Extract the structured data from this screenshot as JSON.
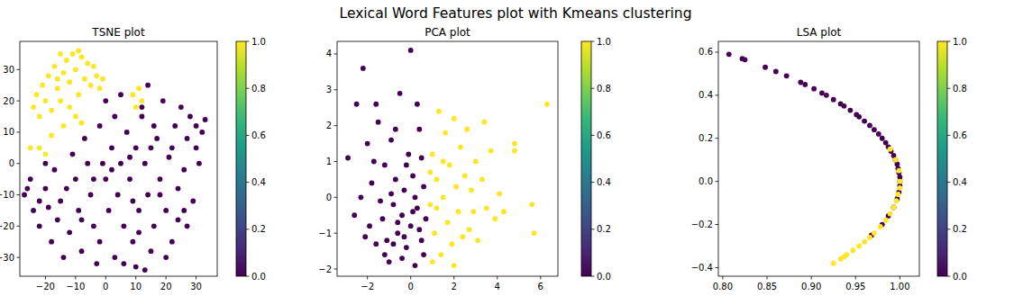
{
  "title": "Lexical Word Features plot with Kmeans clustering",
  "chart_data": [
    {
      "type": "scatter",
      "title": "TSNE plot",
      "xlim": [
        -28.5,
        37
      ],
      "ylim": [
        -36,
        39
      ],
      "xticks": [
        {
          "value": -20,
          "label": "−20"
        },
        {
          "value": -10,
          "label": "−10"
        },
        0,
        10,
        20,
        30
      ],
      "yticks": [
        {
          "value": -30,
          "label": "−30"
        },
        {
          "value": -20,
          "label": "−20"
        },
        {
          "value": -10,
          "label": "−10"
        },
        0,
        10,
        20,
        30
      ],
      "colorbar": {
        "range": [
          0,
          1
        ],
        "ticks": [
          {
            "value": 0,
            "label": "0.0"
          },
          {
            "value": 0.2,
            "label": "0.2"
          },
          {
            "value": 0.4,
            "label": "0.4"
          },
          {
            "value": 0.6,
            "label": "0.6"
          },
          {
            "value": 0.8,
            "label": "0.8"
          },
          {
            "value": 1,
            "label": "1.0"
          }
        ]
      },
      "series": [
        {
          "color": "#440154",
          "x": [
            -27,
            -25,
            -24,
            -22,
            -20,
            -18,
            -17,
            -15,
            -14,
            -12,
            -10,
            -9,
            -8,
            -6,
            -5,
            -4,
            -2,
            0,
            1,
            2,
            3,
            4,
            5,
            6,
            7,
            8,
            9,
            10,
            10,
            11,
            12,
            13,
            14,
            15,
            16,
            17,
            18,
            19,
            20,
            21,
            22,
            23,
            24,
            25,
            26,
            27,
            28,
            29,
            30,
            31,
            32,
            33,
            24,
            20,
            14,
            12,
            -20,
            -22,
            -26,
            -16,
            -3,
            6,
            -11,
            -7,
            -2,
            3,
            0,
            5,
            -1,
            8,
            16,
            18,
            26,
            -13,
            -19,
            2,
            9,
            15,
            22,
            11,
            -8,
            -4,
            30,
            27,
            13
          ],
          "values": [
            -10,
            -5,
            -15,
            -20,
            -8,
            -25,
            -2,
            -12,
            -30,
            -22,
            -5,
            -15,
            -28,
            0,
            -10,
            -20,
            -25,
            -5,
            -15,
            5,
            -30,
            -10,
            0,
            -20,
            10,
            -5,
            -25,
            -33,
            5,
            -15,
            15,
            0,
            -10,
            -28,
            -20,
            8,
            -5,
            20,
            -15,
            2,
            -25,
            12,
            -8,
            18,
            -2,
            8,
            15,
            -12,
            12,
            0,
            10,
            14,
            -18,
            -30,
            25,
            18,
            0,
            -12,
            -8,
            -18,
            -32,
            -32,
            3,
            8,
            12,
            15,
            20,
            22,
            0,
            2,
            12,
            -10,
            -15,
            -8,
            -14,
            -2,
            -12,
            5,
            5,
            -22,
            -18,
            -5,
            5,
            -20,
            -34
          ]
        },
        {
          "color": "#fde725",
          "x": [
            -24,
            -23,
            -22,
            -21,
            -20,
            -19,
            -18,
            -17,
            -16,
            -15,
            -14,
            -13,
            -12,
            -11,
            -10,
            -9,
            -8,
            -7,
            -6,
            -5,
            -4,
            -3,
            -2,
            -12,
            -14,
            -10,
            -18,
            -22,
            -25,
            -20,
            -8,
            -15,
            9,
            11,
            12,
            10,
            -1,
            -16,
            -9
          ],
          "values": [
            18,
            22,
            15,
            25,
            20,
            28,
            17,
            31,
            24,
            35,
            29,
            33,
            26,
            35,
            30,
            22,
            34,
            27,
            32,
            25,
            31,
            28,
            24,
            18,
            12,
            15,
            9,
            5,
            5,
            3,
            13,
            20,
            22,
            24,
            20,
            18,
            27,
            27,
            36
          ]
        }
      ]
    },
    {
      "type": "scatter",
      "title": "PCA plot",
      "xlim": [
        -3.4,
        6.8
      ],
      "ylim": [
        -2.2,
        4.35
      ],
      "xticks": [
        {
          "value": -2,
          "label": "−2"
        },
        0,
        2,
        4,
        6
      ],
      "yticks": [
        {
          "value": -2,
          "label": "−2"
        },
        {
          "value": -1,
          "label": "−1"
        },
        0,
        1,
        2,
        3,
        4
      ],
      "colorbar": {
        "range": [
          0,
          1
        ],
        "ticks": [
          {
            "value": 0,
            "label": "0.0"
          },
          {
            "value": 0.2,
            "label": "0.2"
          },
          {
            "value": 0.4,
            "label": "0.4"
          },
          {
            "value": 0.6,
            "label": "0.6"
          },
          {
            "value": 0.8,
            "label": "0.8"
          },
          {
            "value": 1,
            "label": "1.0"
          }
        ]
      },
      "series": [
        {
          "color": "#440154",
          "x": [
            -2.9,
            -2.5,
            -2.2,
            -2.0,
            -1.8,
            -1.6,
            -1.5,
            -1.3,
            -1.2,
            -1.0,
            -0.9,
            -0.8,
            -0.7,
            -0.6,
            -0.5,
            -0.4,
            -0.3,
            -0.2,
            -0.1,
            0.0,
            0.0,
            0.1,
            0.2,
            0.3,
            0.4,
            0.5,
            0.6,
            0.7,
            -1.4,
            -1.1,
            -0.9,
            -0.6,
            -0.3,
            0.2,
            0.4,
            -2.3,
            -1.9,
            -2.6,
            -1.7,
            -0.2,
            0.5,
            -0.4,
            -1.2,
            0.1,
            -0.8,
            0.6,
            -1.6,
            0.3,
            -0.7,
            -2.1
          ],
          "values": [
            1.1,
            2.6,
            3.6,
            1.5,
            0.4,
            -1.3,
            2.1,
            -0.6,
            0.9,
            -1.8,
            1.6,
            -0.2,
            0.5,
            -1.0,
            2.9,
            -0.5,
            0.2,
            -1.4,
            1.2,
            4.1,
            -0.8,
            0.6,
            -1.9,
            -0.3,
            1.9,
            -1.2,
            0.3,
            -0.6,
            -0.1,
            -1.2,
            0.1,
            -0.7,
            -1.1,
            0.0,
            -0.9,
            0.0,
            -0.8,
            -0.5,
            1.0,
            0.9,
            1.1,
            -1.7,
            -1.6,
            -0.4,
            -1.3,
            -1.6,
            2.6,
            2.6,
            1.9,
            -1.1
          ]
        },
        {
          "color": "#fde725",
          "x": [
            0.9,
            1.0,
            1.1,
            1.2,
            1.3,
            1.4,
            1.5,
            1.6,
            1.7,
            1.8,
            1.9,
            2.0,
            2.1,
            2.2,
            2.3,
            2.4,
            2.5,
            2.6,
            2.7,
            2.8,
            3.0,
            3.1,
            3.3,
            3.5,
            3.7,
            3.9,
            4.1,
            4.3,
            4.8,
            4.8,
            5.6,
            5.7,
            6.3,
            1.0,
            1.2,
            0.9,
            1.5,
            2.0,
            3.4,
            2.9
          ],
          "values": [
            -0.2,
            1.2,
            -1.0,
            0.5,
            2.4,
            -1.6,
            0.0,
            1.8,
            -0.7,
            0.9,
            -1.3,
            2.2,
            0.3,
            -0.4,
            1.4,
            -1.1,
            0.6,
            1.9,
            -0.9,
            0.2,
            1.0,
            -1.2,
            0.5,
            -0.3,
            1.3,
            -0.6,
            0.1,
            -0.4,
            1.5,
            1.3,
            -0.2,
            -1.0,
            2.6,
            -1.8,
            -0.3,
            0.7,
            1.0,
            -1.9,
            2.1,
            -0.4
          ]
        }
      ]
    },
    {
      "type": "scatter",
      "title": "LSA plot",
      "xlim": [
        0.795,
        1.022
      ],
      "ylim": [
        -0.44,
        0.65
      ],
      "xticks": [
        {
          "value": 0.8,
          "label": "0.80"
        },
        {
          "value": 0.85,
          "label": "0.85"
        },
        {
          "value": 0.9,
          "label": "0.90"
        },
        {
          "value": 0.95,
          "label": "0.95"
        },
        {
          "value": 1.0,
          "label": "1.00"
        }
      ],
      "yticks": [
        {
          "value": -0.4,
          "label": "−0.4"
        },
        {
          "value": -0.2,
          "label": "−0.2"
        },
        {
          "value": 0,
          "label": "0.0"
        },
        0.2,
        0.4,
        0.6
      ],
      "colorbar": {
        "range": [
          0,
          1
        ],
        "ticks": [
          {
            "value": 0,
            "label": "0.0"
          },
          {
            "value": 0.2,
            "label": "0.2"
          },
          {
            "value": 0.4,
            "label": "0.4"
          },
          {
            "value": 0.6,
            "label": "0.6"
          },
          {
            "value": 0.8,
            "label": "0.8"
          },
          {
            "value": 1,
            "label": "1.0"
          }
        ]
      },
      "series": [
        {
          "color": "#440154",
          "x": [
            0.807,
            0.822,
            0.825,
            0.848,
            0.86,
            0.872,
            0.888,
            0.893,
            0.903,
            0.912,
            0.917,
            0.925,
            0.933,
            0.937,
            0.944,
            0.951,
            0.954,
            0.96,
            0.966,
            0.971,
            0.976,
            0.98,
            0.984,
            0.987,
            0.99,
            0.993,
            0.995,
            0.997,
            0.998,
            0.999,
            1.0,
            1.0,
            1.0,
            0.999,
            0.997,
            0.993,
            0.987,
            0.98,
            0.968
          ],
          "values": [
            0.59,
            0.57,
            0.565,
            0.53,
            0.51,
            0.49,
            0.46,
            0.45,
            0.43,
            0.41,
            0.4,
            0.38,
            0.36,
            0.35,
            0.33,
            0.31,
            0.3,
            0.28,
            0.26,
            0.24,
            0.22,
            0.2,
            0.18,
            0.16,
            0.14,
            0.12,
            0.1,
            0.08,
            0.06,
            0.04,
            0.02,
            0.0,
            -0.02,
            -0.05,
            -0.08,
            -0.12,
            -0.16,
            -0.2,
            -0.25
          ]
        },
        {
          "color": "#fde725",
          "x": [
            0.989,
            0.995,
            0.999,
            1.0,
            1.0,
            0.998,
            0.996,
            0.993,
            0.989,
            0.984,
            0.978,
            0.971,
            0.966,
            0.96,
            0.954,
            0.947,
            0.94,
            0.937,
            0.933,
            0.925
          ],
          "values": [
            0.15,
            0.1,
            0.05,
            0.0,
            -0.03,
            -0.06,
            -0.09,
            -0.12,
            -0.15,
            -0.18,
            -0.21,
            -0.24,
            -0.26,
            -0.28,
            -0.3,
            -0.32,
            -0.34,
            -0.35,
            -0.36,
            -0.38
          ]
        }
      ]
    }
  ]
}
